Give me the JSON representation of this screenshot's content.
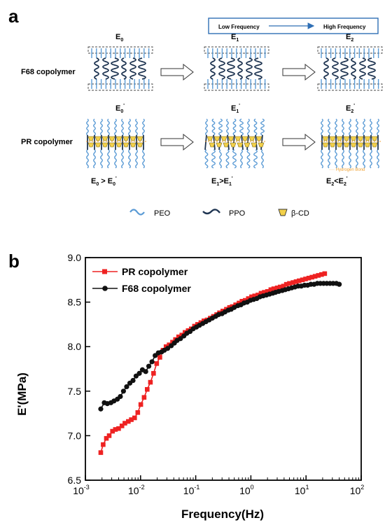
{
  "panel_a": {
    "letter": "a",
    "freq_box": {
      "low": "Low Frequency",
      "high": "High Frequency"
    },
    "rows": [
      {
        "label": "F68 copolymer",
        "moduli": [
          {
            "base": "E",
            "sub": "0",
            "prime": false
          },
          {
            "base": "E",
            "sub": "1",
            "prime": false
          },
          {
            "base": "E",
            "sub": "2",
            "prime": false
          }
        ]
      },
      {
        "label": "PR copolymer",
        "moduli": [
          {
            "base": "E",
            "sub": "0",
            "prime": true
          },
          {
            "base": "E",
            "sub": "1",
            "prime": true
          },
          {
            "base": "E",
            "sub": "2",
            "prime": true
          }
        ]
      }
    ],
    "relations": [
      "E0 > E0'",
      "E1>E1'",
      "E2<E2'"
    ],
    "hydrogen_bond": "Hydrogen Bond",
    "legend": {
      "peo": "PEO",
      "ppo": "PPO",
      "cd": "β-CD"
    },
    "colors": {
      "peo": "#5b9bd5",
      "ppo": "#1f3552",
      "cd": "#f2d04a",
      "hbond": "#f0a030",
      "arrow_box": "#2f6fb5"
    }
  },
  "panel_b": {
    "letter": "b"
  },
  "chart_data": {
    "type": "line",
    "xlabel": "Frequency(Hz)",
    "ylabel": "E'(MPa)",
    "xscale": "log",
    "xlim": [
      0.001,
      100
    ],
    "ylim": [
      6.5,
      9.0
    ],
    "xticks": [
      {
        "base": "10",
        "exp": "-3"
      },
      {
        "base": "10",
        "exp": "-2"
      },
      {
        "base": "10",
        "exp": "-1"
      },
      {
        "base": "10",
        "exp": "0"
      },
      {
        "base": "10",
        "exp": "1"
      },
      {
        "base": "10",
        "exp": "2"
      }
    ],
    "yticks": [
      "6.5",
      "7.0",
      "7.5",
      "8.0",
      "8.5",
      "9.0"
    ],
    "legend_position": "top-left",
    "series": [
      {
        "name": "PR copolymer",
        "color": "#ee2222",
        "marker": "square",
        "x": [
          0.0019,
          0.0021,
          0.0024,
          0.0027,
          0.0031,
          0.0035,
          0.004,
          0.0046,
          0.0052,
          0.006,
          0.0068,
          0.0078,
          0.0089,
          0.0101,
          0.0116,
          0.0132,
          0.0151,
          0.0172,
          0.0196,
          0.0224,
          0.0256,
          0.029,
          0.033,
          0.038,
          0.043,
          0.049,
          0.056,
          0.064,
          0.073,
          0.083,
          0.095,
          0.108,
          0.124,
          0.141,
          0.161,
          0.184,
          0.21,
          0.24,
          0.27,
          0.31,
          0.36,
          0.41,
          0.46,
          0.53,
          0.61,
          0.69,
          0.79,
          0.9,
          1.03,
          1.17,
          1.34,
          1.53,
          1.75,
          2.0,
          2.3,
          2.6,
          3.0,
          3.4,
          3.9,
          4.4,
          5.0,
          5.8,
          6.6,
          7.5,
          8.6,
          9.8,
          11.2,
          12.8,
          14.6,
          16.7,
          19.1,
          21.8
        ],
        "y": [
          6.81,
          6.9,
          6.97,
          7.0,
          7.05,
          7.07,
          7.08,
          7.11,
          7.14,
          7.16,
          7.18,
          7.2,
          7.26,
          7.35,
          7.43,
          7.52,
          7.6,
          7.7,
          7.81,
          7.88,
          7.96,
          8.0,
          8.02,
          8.05,
          8.08,
          8.11,
          8.13,
          8.16,
          8.18,
          8.2,
          8.23,
          8.25,
          8.27,
          8.29,
          8.3,
          8.32,
          8.34,
          8.36,
          8.38,
          8.4,
          8.42,
          8.44,
          8.45,
          8.47,
          8.49,
          8.51,
          8.52,
          8.54,
          8.56,
          8.57,
          8.58,
          8.6,
          8.61,
          8.62,
          8.64,
          8.65,
          8.66,
          8.67,
          8.68,
          8.7,
          8.71,
          8.72,
          8.73,
          8.74,
          8.75,
          8.76,
          8.77,
          8.78,
          8.79,
          8.8,
          8.81,
          8.82
        ]
      },
      {
        "name": "F68 copolymer",
        "color": "#111111",
        "marker": "circle",
        "x": [
          0.0019,
          0.0022,
          0.0025,
          0.0029,
          0.0033,
          0.0038,
          0.0043,
          0.0049,
          0.0056,
          0.0064,
          0.0073,
          0.0083,
          0.0095,
          0.0108,
          0.0124,
          0.0141,
          0.0161,
          0.0184,
          0.021,
          0.024,
          0.027,
          0.031,
          0.036,
          0.041,
          0.046,
          0.053,
          0.061,
          0.069,
          0.079,
          0.09,
          0.103,
          0.117,
          0.134,
          0.153,
          0.175,
          0.2,
          0.23,
          0.26,
          0.3,
          0.34,
          0.39,
          0.44,
          0.5,
          0.58,
          0.66,
          0.75,
          0.86,
          0.98,
          1.12,
          1.28,
          1.46,
          1.67,
          1.91,
          2.18,
          2.5,
          2.8,
          3.2,
          3.7,
          4.2,
          4.8,
          5.5,
          6.3,
          7.2,
          8.2,
          9.4,
          10.7,
          12.2,
          14.0,
          16.0,
          18.2,
          20.8,
          23.8,
          27.2,
          31.0,
          35.5,
          40.0
        ],
        "y": [
          7.3,
          7.37,
          7.36,
          7.37,
          7.39,
          7.41,
          7.44,
          7.5,
          7.55,
          7.59,
          7.62,
          7.67,
          7.7,
          7.74,
          7.72,
          7.78,
          7.83,
          7.9,
          7.93,
          7.94,
          7.96,
          7.98,
          8.01,
          8.04,
          8.07,
          8.09,
          8.12,
          8.15,
          8.17,
          8.2,
          8.22,
          8.24,
          8.26,
          8.28,
          8.3,
          8.32,
          8.34,
          8.36,
          8.37,
          8.39,
          8.41,
          8.42,
          8.44,
          8.46,
          8.47,
          8.49,
          8.5,
          8.52,
          8.53,
          8.54,
          8.56,
          8.57,
          8.58,
          8.59,
          8.6,
          8.61,
          8.62,
          8.63,
          8.64,
          8.65,
          8.66,
          8.67,
          8.68,
          8.68,
          8.69,
          8.69,
          8.7,
          8.7,
          8.71,
          8.71,
          8.71,
          8.71,
          8.71,
          8.71,
          8.71,
          8.7
        ]
      }
    ]
  }
}
